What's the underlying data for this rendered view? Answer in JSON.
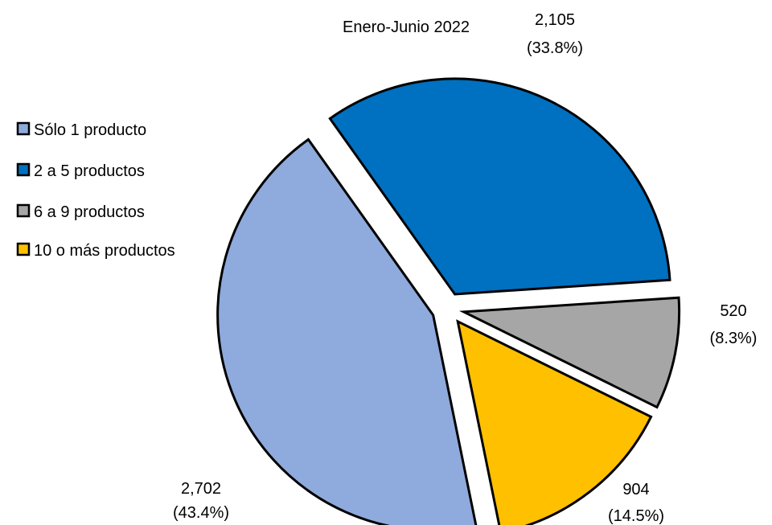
{
  "chart_data": {
    "type": "pie",
    "title": "Enero-Junio  2022",
    "legend_position": "left",
    "slices": [
      {
        "label": "Sólo 1 producto",
        "value": 2702,
        "value_text": "2,702",
        "percent_text": "(43.4%)",
        "color": "#8FAADC"
      },
      {
        "label": "2 a 5 productos",
        "value": 2105,
        "value_text": "2,105",
        "percent_text": "(33.8%)",
        "color": "#0070C0"
      },
      {
        "label": "6 a 9 productos",
        "value": 520,
        "value_text": "520",
        "percent_text": "(8.3%)",
        "color": "#A6A6A6"
      },
      {
        "label": "10 o más productos",
        "value": 904,
        "value_text": "904",
        "percent_text": "(14.5%)",
        "color": "#FFC000"
      }
    ]
  }
}
